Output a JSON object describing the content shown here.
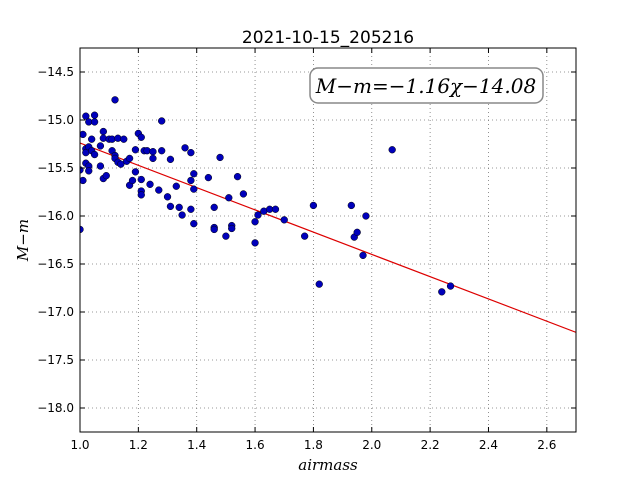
{
  "chart_data": {
    "type": "scatter",
    "title": "2021-10-15_205216",
    "xlabel": "airmass",
    "ylabel": "M−m",
    "xlim": [
      1.0,
      2.7
    ],
    "ylim": [
      -18.25,
      -14.25
    ],
    "x_ticks": [
      "1.0",
      "1.2",
      "1.4",
      "1.6",
      "1.8",
      "2.0",
      "2.2",
      "2.4",
      "2.6"
    ],
    "y_ticks": [
      "−14.5",
      "−15.0",
      "−15.5",
      "−16.0",
      "−16.5",
      "−17.0",
      "−17.5",
      "−18.0"
    ],
    "grid": true,
    "annotation": "M−m=−1.16χ−14.08",
    "fit_line": {
      "slope": -1.16,
      "intercept": -14.08,
      "color": "#dd0000"
    },
    "marker_color": "#0000bb",
    "points": [
      [
        1.0,
        -15.52
      ],
      [
        1.0,
        -16.14
      ],
      [
        1.01,
        -15.15
      ],
      [
        1.01,
        -15.63
      ],
      [
        1.02,
        -15.3
      ],
      [
        1.02,
        -15.34
      ],
      [
        1.02,
        -15.45
      ],
      [
        1.02,
        -14.96
      ],
      [
        1.03,
        -15.02
      ],
      [
        1.03,
        -15.28
      ],
      [
        1.03,
        -15.48
      ],
      [
        1.03,
        -15.53
      ],
      [
        1.04,
        -15.32
      ],
      [
        1.04,
        -15.2
      ],
      [
        1.05,
        -14.95
      ],
      [
        1.05,
        -15.02
      ],
      [
        1.05,
        -15.36
      ],
      [
        1.07,
        -15.27
      ],
      [
        1.07,
        -15.48
      ],
      [
        1.08,
        -15.12
      ],
      [
        1.08,
        -15.19
      ],
      [
        1.08,
        -15.61
      ],
      [
        1.09,
        -15.58
      ],
      [
        1.1,
        -15.2
      ],
      [
        1.11,
        -15.2
      ],
      [
        1.11,
        -15.32
      ],
      [
        1.12,
        -15.37
      ],
      [
        1.12,
        -15.4
      ],
      [
        1.12,
        -14.79
      ],
      [
        1.13,
        -15.19
      ],
      [
        1.13,
        -15.44
      ],
      [
        1.14,
        -15.46
      ],
      [
        1.15,
        -15.2
      ],
      [
        1.16,
        -15.43
      ],
      [
        1.17,
        -15.68
      ],
      [
        1.17,
        -15.4
      ],
      [
        1.18,
        -15.63
      ],
      [
        1.19,
        -15.54
      ],
      [
        1.19,
        -15.31
      ],
      [
        1.2,
        -15.14
      ],
      [
        1.21,
        -15.18
      ],
      [
        1.21,
        -15.62
      ],
      [
        1.21,
        -15.74
      ],
      [
        1.21,
        -15.78
      ],
      [
        1.22,
        -15.32
      ],
      [
        1.23,
        -15.32
      ],
      [
        1.24,
        -15.67
      ],
      [
        1.25,
        -15.33
      ],
      [
        1.25,
        -15.4
      ],
      [
        1.27,
        -15.73
      ],
      [
        1.28,
        -15.32
      ],
      [
        1.28,
        -15.01
      ],
      [
        1.3,
        -15.8
      ],
      [
        1.31,
        -15.9
      ],
      [
        1.31,
        -15.41
      ],
      [
        1.33,
        -15.69
      ],
      [
        1.34,
        -15.91
      ],
      [
        1.35,
        -15.99
      ],
      [
        1.36,
        -15.29
      ],
      [
        1.38,
        -15.34
      ],
      [
        1.38,
        -15.63
      ],
      [
        1.38,
        -15.93
      ],
      [
        1.39,
        -15.56
      ],
      [
        1.39,
        -15.72
      ],
      [
        1.39,
        -16.08
      ],
      [
        1.44,
        -15.6
      ],
      [
        1.46,
        -16.12
      ],
      [
        1.46,
        -15.91
      ],
      [
        1.46,
        -16.14
      ],
      [
        1.48,
        -15.39
      ],
      [
        1.5,
        -16.21
      ],
      [
        1.51,
        -15.81
      ],
      [
        1.52,
        -16.1
      ],
      [
        1.52,
        -16.13
      ],
      [
        1.54,
        -15.59
      ],
      [
        1.56,
        -15.77
      ],
      [
        1.6,
        -16.06
      ],
      [
        1.6,
        -16.28
      ],
      [
        1.61,
        -15.99
      ],
      [
        1.63,
        -15.95
      ],
      [
        1.65,
        -15.93
      ],
      [
        1.67,
        -15.93
      ],
      [
        1.7,
        -16.04
      ],
      [
        1.77,
        -16.21
      ],
      [
        1.8,
        -15.89
      ],
      [
        1.82,
        -16.71
      ],
      [
        1.93,
        -15.89
      ],
      [
        1.94,
        -16.22
      ],
      [
        1.95,
        -16.17
      ],
      [
        1.97,
        -16.41
      ],
      [
        1.98,
        -16.0
      ],
      [
        2.07,
        -15.31
      ],
      [
        2.24,
        -16.79
      ],
      [
        2.27,
        -16.73
      ]
    ]
  }
}
